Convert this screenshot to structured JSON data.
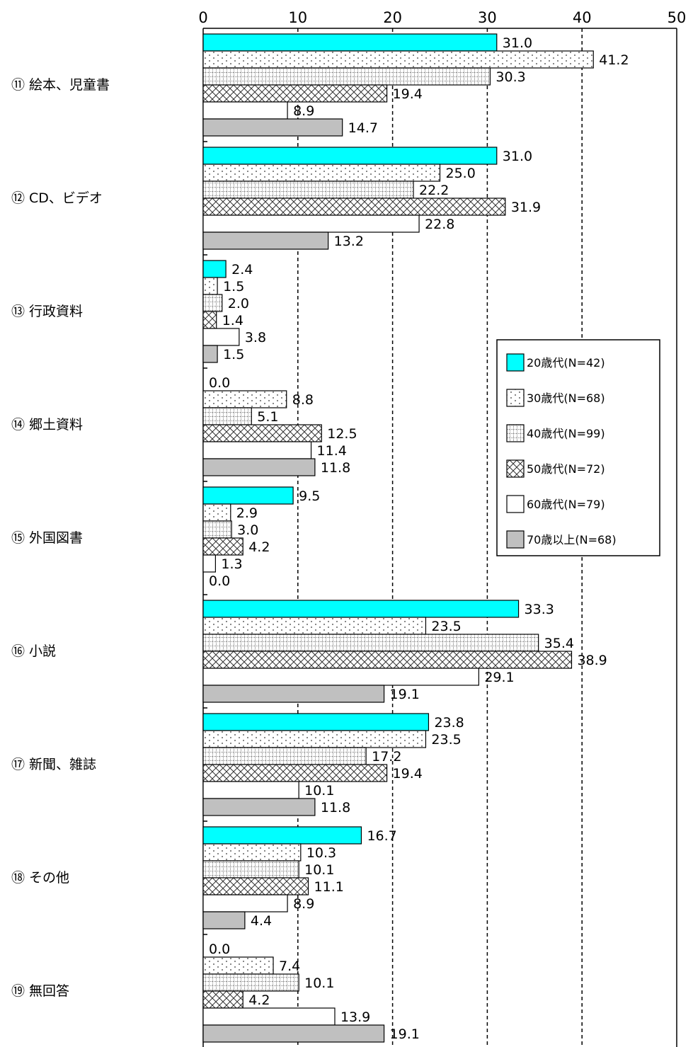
{
  "chart_data": {
    "type": "bar",
    "orientation": "horizontal",
    "xlim": [
      0,
      50
    ],
    "x_ticks": [
      "0",
      "10",
      "20",
      "30",
      "40",
      "50"
    ],
    "grid": "vertical dashed",
    "legend_position": "right",
    "categories": [
      "⑪ 絵本、児童書",
      "⑫ CD、ビデオ",
      "⑬ 行政資料",
      "⑭ 郷土資料",
      "⑮ 外国図書",
      "⑯ 小説",
      "⑰ 新聞、雑誌",
      "⑱ その他",
      "⑲ 無回答"
    ],
    "series": [
      {
        "name": "20歳代(N=42)",
        "color": "#00ffff",
        "pattern": "solid",
        "values": [
          31.0,
          31.0,
          2.4,
          0.0,
          9.5,
          33.3,
          23.8,
          16.7,
          0.0
        ],
        "labels": [
          "31.0",
          "31.0",
          "2.4",
          "0.0",
          "9.5",
          "33.3",
          "23.8",
          "16.7",
          "0.0"
        ]
      },
      {
        "name": "30歳代(N=68)",
        "color": "#ffffff",
        "pattern": "dots",
        "values": [
          41.2,
          25.0,
          1.5,
          8.8,
          2.9,
          23.5,
          23.5,
          10.3,
          7.4
        ],
        "labels": [
          "41.2",
          "25.0",
          "1.5",
          "8.8",
          "2.9",
          "23.5",
          "23.5",
          "10.3",
          "7.4"
        ]
      },
      {
        "name": "40歳代(N=99)",
        "color": "#ffffff",
        "pattern": "grid",
        "values": [
          30.3,
          22.2,
          2.0,
          5.1,
          3.0,
          35.4,
          17.2,
          10.1,
          10.1
        ],
        "labels": [
          "30.3",
          "22.2",
          "2.0",
          "5.1",
          "3.0",
          "35.4",
          "17.2",
          "10.1",
          "10.1"
        ]
      },
      {
        "name": "50歳代(N=72)",
        "color": "#ffffff",
        "pattern": "crosshatch",
        "values": [
          19.4,
          31.9,
          1.4,
          12.5,
          4.2,
          38.9,
          19.4,
          11.1,
          4.2
        ],
        "labels": [
          "19.4",
          "31.9",
          "1.4",
          "12.5",
          "4.2",
          "38.9",
          "19.4",
          "11.1",
          "4.2"
        ]
      },
      {
        "name": "60歳代(N=79)",
        "color": "#ffffff",
        "pattern": "none",
        "values": [
          8.9,
          22.8,
          3.8,
          11.4,
          1.3,
          29.1,
          10.1,
          8.9,
          13.9
        ],
        "labels": [
          "8.9",
          "22.8",
          "3.8",
          "11.4",
          "1.3",
          "29.1",
          "10.1",
          "8.9",
          "13.9"
        ]
      },
      {
        "name": "70歳以上(N=68)",
        "color": "#c0c0c0",
        "pattern": "solid",
        "values": [
          14.7,
          13.2,
          1.5,
          11.8,
          0.0,
          19.1,
          11.8,
          4.4,
          19.1
        ],
        "labels": [
          "14.7",
          "13.2",
          "1.5",
          "11.8",
          "0.0",
          "19.1",
          "11.8",
          "4.4",
          "19.1"
        ]
      }
    ]
  }
}
